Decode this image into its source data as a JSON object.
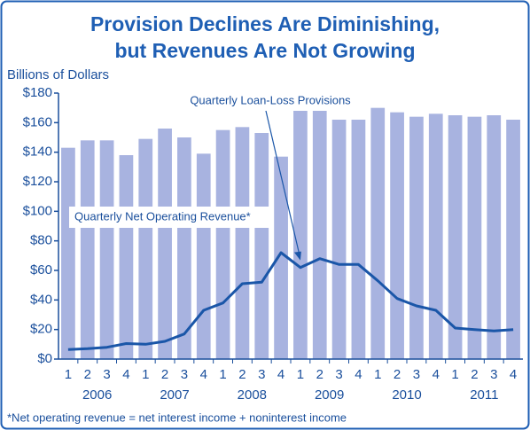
{
  "chart_data": {
    "type": "bar",
    "title": [
      "Provision Declines Are Diminishing,",
      "but Revenues Are Not Growing"
    ],
    "y_axis_label": "Billions of Dollars",
    "categories": [
      "1",
      "2",
      "3",
      "4",
      "1",
      "2",
      "3",
      "4",
      "1",
      "2",
      "3",
      "4",
      "1",
      "2",
      "3",
      "4",
      "1",
      "2",
      "3",
      "4",
      "1",
      "2",
      "3",
      "4"
    ],
    "year_labels": [
      "2006",
      "2007",
      "2008",
      "2009",
      "2010",
      "2011"
    ],
    "series": [
      {
        "name": "Quarterly Net Operating Revenue*",
        "type": "bar",
        "color": "#a8b3e0",
        "values": [
          143,
          148,
          148,
          138,
          149,
          156,
          150,
          139,
          155,
          157,
          153,
          137,
          168,
          168,
          162,
          162,
          170,
          167,
          164,
          166,
          165,
          164,
          165,
          162
        ]
      },
      {
        "name": "Quarterly Loan-Loss Provisions",
        "type": "line",
        "color": "#1a56a8",
        "values": [
          6.5,
          7,
          8,
          10.5,
          10,
          12,
          17,
          33,
          38,
          51,
          52,
          72,
          62,
          68,
          64,
          64,
          53,
          41,
          36,
          33,
          21,
          20,
          19,
          20
        ]
      }
    ],
    "ylim": [
      0,
      180
    ],
    "yticks": [
      {
        "value": 0,
        "label": "$0"
      },
      {
        "value": 20,
        "label": "$20"
      },
      {
        "value": 40,
        "label": "$40"
      },
      {
        "value": 60,
        "label": "$60"
      },
      {
        "value": 80,
        "label": "$80"
      },
      {
        "value": 100,
        "label": "$100"
      },
      {
        "value": 120,
        "label": "$120"
      },
      {
        "value": 140,
        "label": "$140"
      },
      {
        "value": 160,
        "label": "$160"
      },
      {
        "value": 180,
        "label": "$180"
      }
    ],
    "footnote": "*Net operating revenue = net interest income + noninterest income"
  }
}
